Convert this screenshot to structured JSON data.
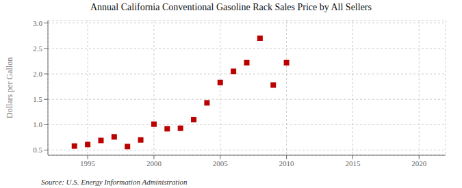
{
  "chart_data": {
    "type": "scatter",
    "title": "Annual California Conventional Gasoline Rack Sales Price by All Sellers",
    "y_label": "Dollars per Gallon",
    "annotations": [
      "Source: U.S. Energy Information Administration"
    ],
    "x": [
      1994,
      1995,
      1996,
      1997,
      1998,
      1999,
      2000,
      2001,
      2002,
      2003,
      2004,
      2005,
      2006,
      2007,
      2008,
      2009,
      2010
    ],
    "values": [
      0.58,
      0.61,
      0.69,
      0.76,
      0.57,
      0.7,
      1.01,
      0.92,
      0.93,
      1.1,
      1.43,
      1.83,
      2.05,
      2.22,
      2.7,
      1.78,
      2.22
    ],
    "color": "#bb0000",
    "marker": "square",
    "xlim": [
      1992,
      2022
    ],
    "ylim": [
      0.4,
      3.05
    ],
    "xticks": [
      1995,
      2000,
      2005,
      2010,
      2015,
      2020
    ],
    "yticks": [
      0.5,
      {
        "value": 1.0,
        "label": "1.0"
      },
      1.5,
      {
        "value": 2.0,
        "label": "2.0"
      },
      2.5,
      {
        "value": 3.0,
        "label": "3.0"
      }
    ],
    "grid": true
  }
}
